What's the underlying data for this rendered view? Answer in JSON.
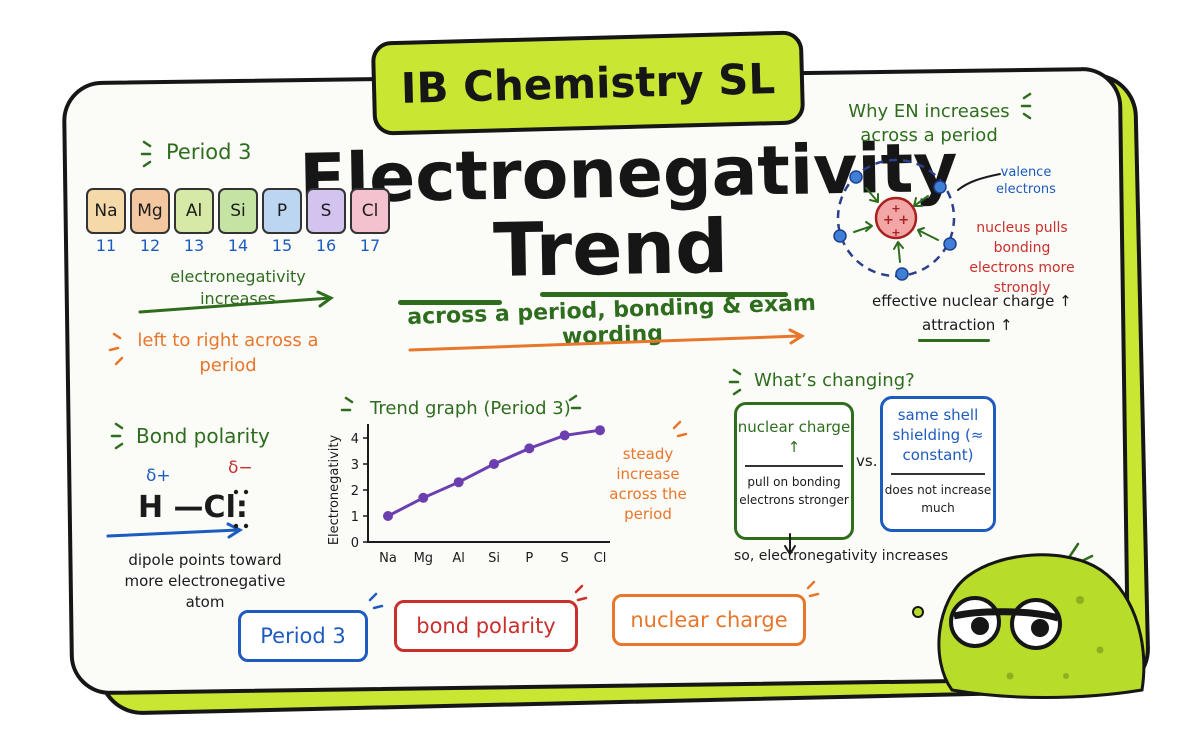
{
  "header": {
    "badge": "IB Chemistry SL",
    "title_line1": "Electronegativity",
    "title_line2": "Trend",
    "subtitle": "across a period, bonding & exam wording"
  },
  "period_panel": {
    "label": "Period 3",
    "elements": [
      {
        "symbol": "Na",
        "number": "11",
        "color": "#f6d9a8"
      },
      {
        "symbol": "Mg",
        "number": "12",
        "color": "#f3c7a0"
      },
      {
        "symbol": "Al",
        "number": "13",
        "color": "#d6e9a6"
      },
      {
        "symbol": "Si",
        "number": "14",
        "color": "#c5e3a2"
      },
      {
        "symbol": "P",
        "number": "15",
        "color": "#bcd6f2"
      },
      {
        "symbol": "S",
        "number": "16",
        "color": "#d3c4ef"
      },
      {
        "symbol": "Cl",
        "number": "17",
        "color": "#f4c1cf"
      }
    ],
    "trend_text": "electronegativity increases",
    "direction_text": "left to right across a period"
  },
  "bond_panel": {
    "label": "Bond polarity",
    "delta_plus": "δ+",
    "delta_minus": "δ−",
    "molecule": "H —Cl:",
    "caption": "dipole points toward more electronegative atom"
  },
  "graph_panel": {
    "title": "Trend graph (Period 3)",
    "note": "steady increase across the period"
  },
  "chart_data": {
    "type": "line",
    "categories": [
      "Na",
      "Mg",
      "Al",
      "Si",
      "P",
      "S",
      "Cl"
    ],
    "series": [
      {
        "values": [
          1.0,
          1.7,
          2.3,
          3.0,
          3.6,
          4.1,
          4.3
        ],
        "color": "#6b3fb0"
      }
    ],
    "title": "Trend graph (Period 3)",
    "xlabel": "",
    "ylabel": "Electronegativity",
    "ylim": [
      0,
      4
    ],
    "yticks": [
      "0",
      "1",
      "2",
      "3",
      "4"
    ],
    "grid": false
  },
  "why_panel": {
    "title": "Why EN increases across a period",
    "valence_label": "valence electrons",
    "nucleus_label": "nucleus pulls bonding electrons more strongly",
    "effective_charge": "effective nuclear charge ↑",
    "attraction": "attraction ↑"
  },
  "changing_panel": {
    "label": "What’s changing?",
    "nuclear_box": {
      "head": "nuclear charge ↑",
      "body": "pull on bonding electrons stronger"
    },
    "vs": "vs.",
    "shield_box": {
      "head": "same shell shielding (≈ constant)",
      "body": "does not increase much"
    },
    "conclusion": "so, electronegativity increases"
  },
  "tags": {
    "period": "Period 3",
    "bond": "bond polarity",
    "nuclear": "nuclear charge"
  },
  "colors": {
    "accent_lime": "#c8e632",
    "green": "#2f6d1e",
    "orange": "#e8762b",
    "red": "#c9302c",
    "blue": "#1e5bc0",
    "line_purple": "#6b3fb0"
  }
}
